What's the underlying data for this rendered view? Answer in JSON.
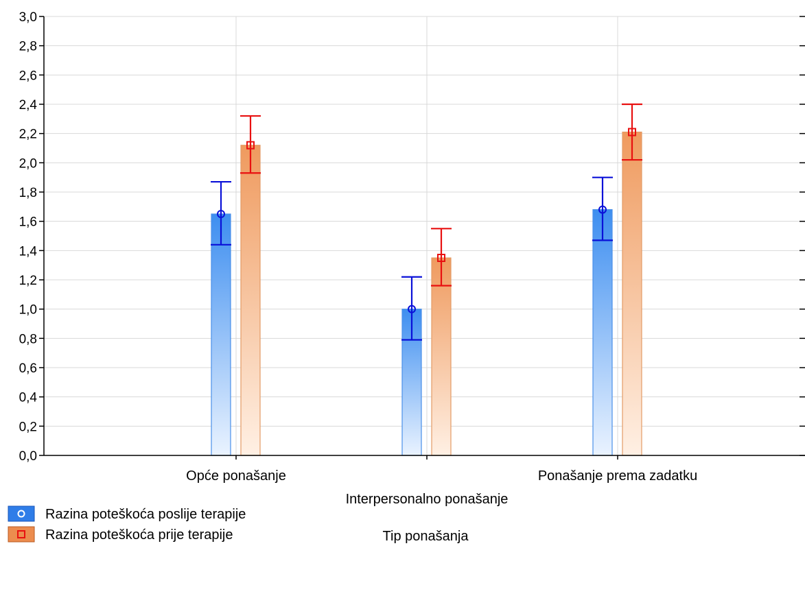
{
  "chart_data": {
    "type": "bar",
    "title": "",
    "xlabel": "Tip ponašanja",
    "ylabel": "",
    "categories": [
      "Opće ponašanje",
      "Interpersonalno ponašanje",
      "Ponašanje prema zadatku"
    ],
    "ylim": [
      0,
      3.0
    ],
    "ytick_step": 0.2,
    "y_decimal_separator": ",",
    "grid": true,
    "legend_position": "bottom-left",
    "series": [
      {
        "name": "Razina poteškoća poslije terapije",
        "color": "#1a6fe0",
        "error_color": "#0a10d8",
        "marker": "circle",
        "values": [
          1.65,
          1.0,
          1.68
        ],
        "error_low": [
          1.44,
          0.79,
          1.47
        ],
        "error_high": [
          1.87,
          1.22,
          1.9
        ]
      },
      {
        "name": "Razina poteškoća prije terapije",
        "color": "#e8884a",
        "error_color": "#e81010",
        "marker": "square",
        "values": [
          2.12,
          1.35,
          2.21
        ],
        "error_low": [
          1.93,
          1.16,
          2.02
        ],
        "error_high": [
          2.32,
          1.55,
          2.4
        ]
      }
    ]
  }
}
